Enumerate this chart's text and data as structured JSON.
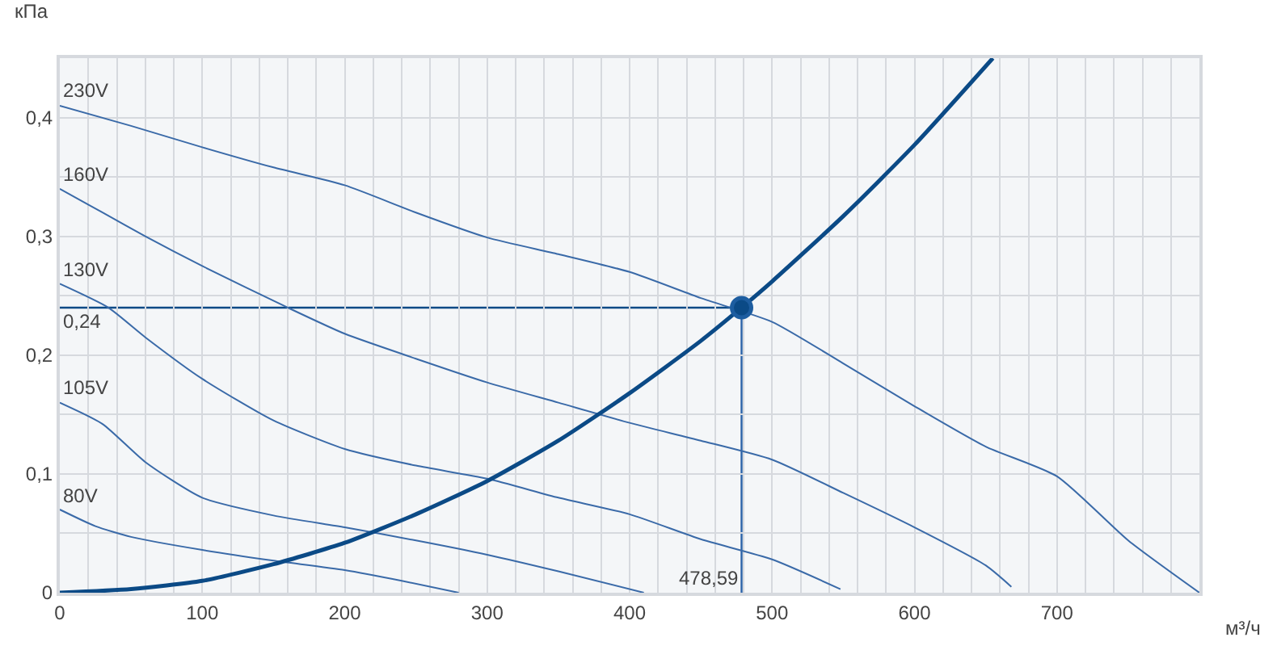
{
  "chart_data": {
    "type": "line",
    "xlabel": "м³/ч",
    "ylabel": "кПа",
    "xlim": [
      0,
      800
    ],
    "ylim": [
      0,
      0.45
    ],
    "xticks": [
      0,
      {
        "value": 20,
        "label": null
      },
      {
        "value": 40,
        "label": null
      },
      {
        "value": 60,
        "label": null
      },
      {
        "value": 80,
        "label": null
      },
      100,
      {
        "value": 120,
        "label": null
      },
      {
        "value": 140,
        "label": null
      },
      {
        "value": 160,
        "label": null
      },
      {
        "value": 180,
        "label": null
      },
      200,
      {
        "value": 220,
        "label": null
      },
      {
        "value": 240,
        "label": null
      },
      {
        "value": 260,
        "label": null
      },
      {
        "value": 280,
        "label": null
      },
      300,
      {
        "value": 320,
        "label": null
      },
      {
        "value": 340,
        "label": null
      },
      {
        "value": 360,
        "label": null
      },
      {
        "value": 380,
        "label": null
      },
      400,
      {
        "value": 420,
        "label": null
      },
      {
        "value": 440,
        "label": null
      },
      {
        "value": 460,
        "label": null
      },
      {
        "value": 480,
        "label": null
      },
      500,
      {
        "value": 520,
        "label": null
      },
      {
        "value": 540,
        "label": null
      },
      {
        "value": 560,
        "label": null
      },
      {
        "value": 580,
        "label": null
      },
      600,
      {
        "value": 620,
        "label": null
      },
      {
        "value": 640,
        "label": null
      },
      {
        "value": 660,
        "label": null
      },
      {
        "value": 680,
        "label": null
      },
      700,
      {
        "value": 720,
        "label": null
      },
      {
        "value": 740,
        "label": null
      },
      {
        "value": 760,
        "label": null
      },
      {
        "value": 780,
        "label": null
      },
      {
        "value": 800,
        "label": null
      }
    ],
    "yticks": [
      0,
      {
        "value": 0.05,
        "label": null
      },
      {
        "value": 0.1,
        "label": "0,1"
      },
      {
        "value": 0.15,
        "label": null
      },
      {
        "value": 0.2,
        "label": "0,2"
      },
      {
        "value": 0.25,
        "label": null
      },
      {
        "value": 0.3,
        "label": "0,3"
      },
      {
        "value": 0.35,
        "label": null
      },
      {
        "value": 0.4,
        "label": "0,4"
      },
      {
        "value": 0.45,
        "label": null
      }
    ],
    "grid": true,
    "legend": false,
    "marker": "none",
    "line_style": "solid",
    "series": [
      {
        "name": "230V",
        "color": "#3a6aa8",
        "x": [
          0,
          50,
          100,
          150,
          200,
          250,
          300,
          350,
          400,
          450,
          500,
          550,
          600,
          650,
          700,
          750,
          800
        ],
        "values": [
          0.41,
          0.393,
          0.375,
          0.358,
          0.343,
          0.32,
          0.299,
          0.285,
          0.27,
          0.248,
          0.228,
          0.193,
          0.157,
          0.123,
          0.098,
          0.044,
          0
        ]
      },
      {
        "name": "160V",
        "color": "#3a6aa8",
        "x": [
          0,
          30,
          60,
          100,
          160,
          200,
          250,
          300,
          350,
          400,
          450,
          500,
          550,
          600,
          650,
          668
        ],
        "values": [
          0.34,
          0.32,
          0.3,
          0.275,
          0.24,
          0.218,
          0.197,
          0.177,
          0.16,
          0.143,
          0.128,
          0.112,
          0.084,
          0.055,
          0.023,
          0.005
        ]
      },
      {
        "name": "130V",
        "color": "#3a6aa8",
        "x": [
          0,
          34,
          60,
          100,
          150,
          200,
          250,
          300,
          350,
          400,
          450,
          500,
          548
        ],
        "values": [
          0.26,
          0.24,
          0.215,
          0.18,
          0.145,
          0.121,
          0.107,
          0.096,
          0.08,
          0.066,
          0.045,
          0.028,
          0.003
        ]
      },
      {
        "name": "105V",
        "color": "#3a6aa8",
        "x": [
          0,
          30,
          60,
          100,
          150,
          200,
          250,
          300,
          350,
          410
        ],
        "values": [
          0.16,
          0.142,
          0.11,
          0.08,
          0.065,
          0.055,
          0.044,
          0.032,
          0.018,
          0
        ]
      },
      {
        "name": "80V",
        "color": "#3a6aa8",
        "x": [
          0,
          25,
          50,
          100,
          150,
          200,
          240,
          280
        ],
        "values": [
          0.07,
          0.056,
          0.047,
          0.036,
          0.027,
          0.019,
          0.01,
          0
        ]
      },
      {
        "color": "#0b4a86",
        "x": [
          0,
          50,
          100,
          150,
          200,
          250,
          300,
          350,
          400,
          450,
          478.59,
          500,
          550,
          600,
          655
        ],
        "values": [
          0,
          0.003,
          0.01,
          0.024,
          0.042,
          0.066,
          0.094,
          0.128,
          0.168,
          0.212,
          0.24,
          0.262,
          0.317,
          0.377,
          0.45
        ]
      },
      {
        "type": "scatter",
        "marker": "circle",
        "color": "#0b4a86",
        "x": [
          478.59
        ],
        "values": [
          0.24
        ]
      }
    ],
    "ref_lines": [
      {
        "axis": "y",
        "value": 0.24,
        "label": "0,24",
        "color": "#0b4a86"
      },
      {
        "axis": "x",
        "value": 478.59,
        "label": "478,59",
        "color": "#2a62a8"
      }
    ]
  }
}
